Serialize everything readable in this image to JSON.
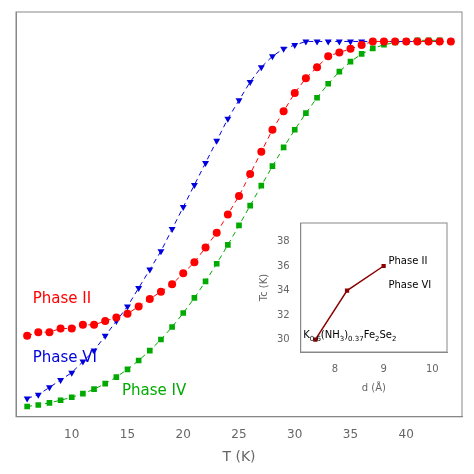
{
  "chart_data": [
    {
      "type": "line",
      "xlabel": "T (K)",
      "xlim": [
        5,
        45
      ],
      "xticks": [
        10,
        15,
        20,
        25,
        30,
        35,
        40
      ],
      "ylim": [
        -0.02,
        1.08
      ],
      "tick_labels": "x",
      "grid": false,
      "line_style": "dashed",
      "series": [
        {
          "color": "#ff0000",
          "marker": "circle",
          "x": [
            6,
            7,
            8,
            9,
            10,
            11,
            12,
            13,
            14,
            15,
            16,
            17,
            18,
            19,
            20,
            21,
            22,
            23,
            24,
            25,
            26,
            27,
            28,
            29,
            30,
            31,
            32,
            33,
            34,
            35,
            36,
            37,
            38,
            39,
            40,
            41,
            42,
            43,
            44
          ],
          "values": [
            0.2,
            0.21,
            0.21,
            0.22,
            0.22,
            0.23,
            0.23,
            0.24,
            0.25,
            0.26,
            0.28,
            0.3,
            0.32,
            0.34,
            0.37,
            0.4,
            0.44,
            0.48,
            0.53,
            0.58,
            0.64,
            0.7,
            0.76,
            0.81,
            0.86,
            0.9,
            0.93,
            0.96,
            0.97,
            0.98,
            0.99,
            1.0,
            1.0,
            1.0,
            1.0,
            1.0,
            1.0,
            1.0,
            1.0
          ]
        },
        {
          "color": "#0000dd",
          "marker": "triangle_down",
          "x": [
            6,
            7,
            8,
            9,
            10,
            11,
            12,
            13,
            14,
            15,
            16,
            17,
            18,
            19,
            20,
            21,
            22,
            23,
            24,
            25,
            26,
            27,
            28,
            29,
            30,
            31,
            32,
            33,
            34,
            35,
            36,
            37,
            38,
            39,
            40,
            41,
            42,
            43
          ],
          "values": [
            0.03,
            0.04,
            0.06,
            0.08,
            0.1,
            0.13,
            0.16,
            0.2,
            0.24,
            0.28,
            0.33,
            0.38,
            0.43,
            0.49,
            0.55,
            0.61,
            0.67,
            0.73,
            0.79,
            0.84,
            0.89,
            0.93,
            0.96,
            0.98,
            0.99,
            1.0,
            1.0,
            1.0,
            1.0,
            1.0,
            1.0,
            1.0,
            1.0,
            1.0,
            1.0,
            1.0,
            1.0,
            1.0
          ]
        },
        {
          "color": "#00aa00",
          "marker": "square",
          "x": [
            6,
            7,
            8,
            9,
            10,
            11,
            12,
            13,
            14,
            15,
            16,
            17,
            18,
            19,
            20,
            21,
            22,
            23,
            24,
            25,
            26,
            27,
            28,
            29,
            30,
            31,
            32,
            33,
            34,
            35,
            36,
            37,
            38,
            39,
            40,
            41,
            42,
            43
          ],
          "values": [
            0.008,
            0.012,
            0.018,
            0.025,
            0.033,
            0.043,
            0.055,
            0.07,
            0.088,
            0.109,
            0.133,
            0.16,
            0.19,
            0.224,
            0.262,
            0.303,
            0.348,
            0.396,
            0.447,
            0.5,
            0.554,
            0.608,
            0.661,
            0.712,
            0.76,
            0.805,
            0.847,
            0.885,
            0.918,
            0.945,
            0.966,
            0.981,
            0.991,
            0.997,
            1.001,
            1.003,
            1.003,
            1.003
          ]
        }
      ],
      "annotations": [
        {
          "text": "Phase II",
          "x": 6.5,
          "y": 0.29,
          "color": "#ff0000"
        },
        {
          "text": "Phase VI",
          "x": 6.5,
          "y": 0.13,
          "color": "#0000dd"
        },
        {
          "text": "Phase IV",
          "x": 14.5,
          "y": 0.04,
          "color": "#00aa00"
        }
      ]
    },
    {
      "type": "line",
      "xlabel": "d (Å)",
      "ylabel": "Tc (K)",
      "xlim": [
        7.3,
        10.3
      ],
      "xticks": [
        8,
        9,
        10
      ],
      "ylim": [
        29.0,
        39.5
      ],
      "yticks": [
        30,
        32,
        34,
        36,
        38
      ],
      "grid": false,
      "line_style": "solid",
      "series": [
        {
          "color": "#8b0000",
          "marker": "square",
          "x": [
            7.6,
            8.25,
            9.0
          ],
          "values": [
            30.0,
            34.0,
            36.0
          ]
        }
      ],
      "annotations": [
        {
          "text": "Phase II",
          "x": 9.1,
          "y": 36.2,
          "color": "#000000"
        },
        {
          "text": "Phase VI",
          "x": 9.1,
          "y": 34.2,
          "color": "#000000"
        },
        {
          "text": "K0.6(NH3)0.37Fe2Se2",
          "x": 7.35,
          "y": 30.1,
          "color": "#000000"
        }
      ]
    }
  ]
}
